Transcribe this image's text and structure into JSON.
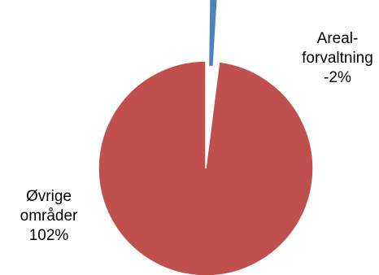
{
  "chart_data": {
    "type": "pie",
    "slices": [
      {
        "label_lines": [
          "Areal-",
          "forvaltning",
          "-2%"
        ],
        "value_percent": -2,
        "color": "#4F81BD"
      },
      {
        "label_lines": [
          "Øvrige",
          "områder",
          "102%"
        ],
        "value_percent": 102,
        "color": "#C0504D"
      }
    ],
    "legend": "none"
  }
}
